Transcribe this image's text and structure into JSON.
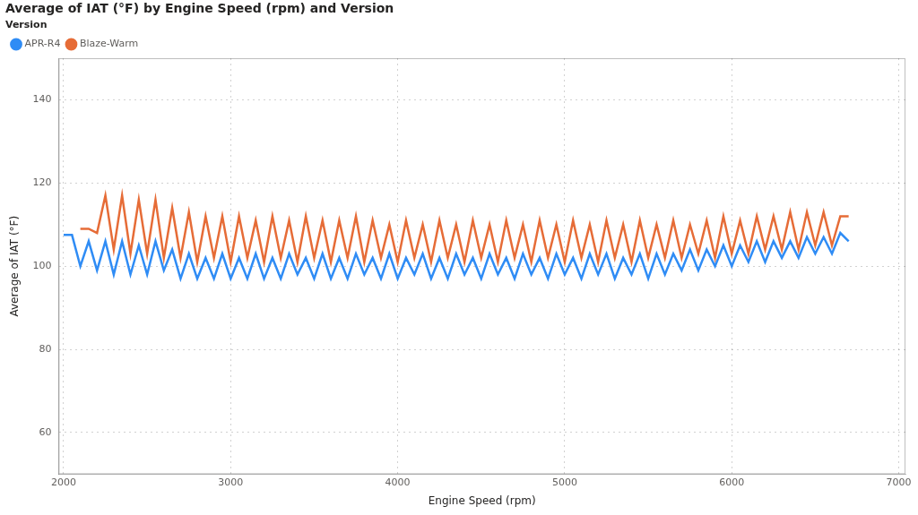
{
  "chart_data": {
    "type": "line",
    "title": "Average of IAT (°F) by Engine Speed (rpm) and Version",
    "legend_title": "Version",
    "x_label": "Engine Speed (rpm)",
    "y_label": "Average of IAT (°F)",
    "x": [
      2000,
      2050,
      2100,
      2150,
      2200,
      2250,
      2300,
      2350,
      2400,
      2450,
      2500,
      2550,
      2600,
      2650,
      2700,
      2750,
      2800,
      2850,
      2900,
      2950,
      3000,
      3050,
      3100,
      3150,
      3200,
      3250,
      3300,
      3350,
      3400,
      3450,
      3500,
      3550,
      3600,
      3650,
      3700,
      3750,
      3800,
      3850,
      3900,
      3950,
      4000,
      4050,
      4100,
      4150,
      4200,
      4250,
      4300,
      4350,
      4400,
      4450,
      4500,
      4550,
      4600,
      4650,
      4700,
      4750,
      4800,
      4850,
      4900,
      4950,
      5000,
      5050,
      5100,
      5150,
      5200,
      5250,
      5300,
      5350,
      5400,
      5450,
      5500,
      5550,
      5600,
      5650,
      5700,
      5750,
      5800,
      5850,
      5900,
      5950,
      6000,
      6050,
      6100,
      6150,
      6200,
      6250,
      6300,
      6350,
      6400,
      6450,
      6500,
      6550,
      6600,
      6650,
      6700
    ],
    "series": [
      {
        "name": "APR-R4",
        "color": "#2f8cf5",
        "values": [
          107.5,
          107.5,
          100,
          106,
          99,
          106,
          98,
          106,
          98,
          105,
          98,
          106,
          99,
          104,
          97,
          103,
          97,
          102,
          97,
          103,
          97,
          102,
          97,
          103,
          97,
          102,
          97,
          103,
          98,
          102,
          97,
          103,
          97,
          102,
          97,
          103,
          98,
          102,
          97,
          103,
          97,
          102,
          98,
          103,
          97,
          102,
          97,
          103,
          98,
          102,
          97,
          103,
          98,
          102,
          97,
          103,
          98,
          102,
          97,
          103,
          98,
          102,
          97,
          103,
          98,
          103,
          97,
          102,
          98,
          103,
          97,
          103,
          98,
          103,
          99,
          104,
          99,
          104,
          100,
          105,
          100,
          105,
          101,
          106,
          101,
          106,
          102,
          106,
          102,
          107,
          103,
          107,
          103,
          108,
          106
        ]
      },
      {
        "name": "Blaze-Warm",
        "color": "#e66c37",
        "values": [
          null,
          null,
          109,
          109,
          108,
          117,
          104,
          117,
          103,
          116,
          103,
          116,
          102,
          114,
          102,
          113,
          101,
          112,
          102,
          112,
          101,
          112,
          102,
          111,
          101,
          112,
          102,
          111,
          101,
          112,
          102,
          111,
          101,
          111,
          102,
          112,
          101,
          111,
          102,
          110,
          101,
          111,
          102,
          110,
          101,
          111,
          102,
          110,
          101,
          111,
          102,
          110,
          101,
          111,
          102,
          110,
          101,
          111,
          102,
          110,
          101,
          111,
          102,
          110,
          101,
          111,
          102,
          110,
          101,
          111,
          102,
          110,
          102,
          111,
          102,
          110,
          103,
          111,
          102,
          112,
          103,
          111,
          103,
          112,
          104,
          112,
          104,
          113,
          104,
          113,
          105,
          113,
          105,
          112,
          112
        ]
      }
    ],
    "xlim": [
      1970,
      7040
    ],
    "xticks": [
      2000,
      3000,
      4000,
      5000,
      6000,
      7000
    ],
    "ylim": [
      50,
      150
    ],
    "yticks": [
      60,
      80,
      100,
      120,
      140
    ],
    "grid": true,
    "legend": "top-left"
  }
}
